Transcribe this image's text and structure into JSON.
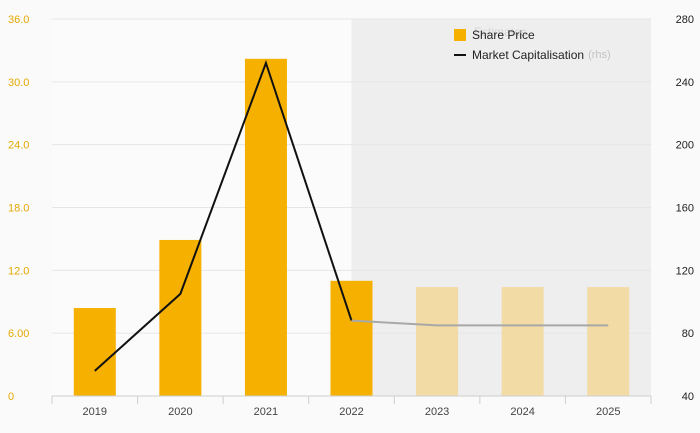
{
  "chart_data": {
    "type": "bar",
    "categories": [
      "2019",
      "2020",
      "2021",
      "2022",
      "2023",
      "2024",
      "2025"
    ],
    "estimate_from": "2023",
    "series": [
      {
        "name": "Share Price",
        "type": "bar",
        "axis": "left",
        "values": [
          8.4,
          14.9,
          32.2,
          11.0,
          10.4,
          10.4,
          10.4
        ]
      },
      {
        "name": "Market Capitalisation",
        "type": "line",
        "axis": "right",
        "values": [
          56,
          105,
          252,
          88,
          85,
          85,
          85
        ]
      }
    ],
    "y_left": {
      "lim": [
        0,
        36
      ],
      "ticks": [
        "0",
        "6.00",
        "12.0",
        "18.0",
        "24.0",
        "30.0",
        "36.0"
      ]
    },
    "y_right": {
      "lim": [
        40,
        280
      ],
      "ticks": [
        "40",
        "80",
        "120",
        "160",
        "200",
        "240",
        "280"
      ]
    },
    "legend": {
      "position": "top-right",
      "estimates_label": "Estimates",
      "items": [
        {
          "label": "Share Price",
          "suffix": ""
        },
        {
          "label": "Market Capitalisation",
          "suffix": "(rhs)"
        }
      ]
    },
    "colors": {
      "bar": "#f5b000",
      "bar_estimate": "#f2dba4",
      "line": "#111111",
      "line_estimate": "#a8a8a8",
      "left_axis_text": "#e5a800",
      "estimate_band": "#eeeeee"
    },
    "grid": true
  }
}
